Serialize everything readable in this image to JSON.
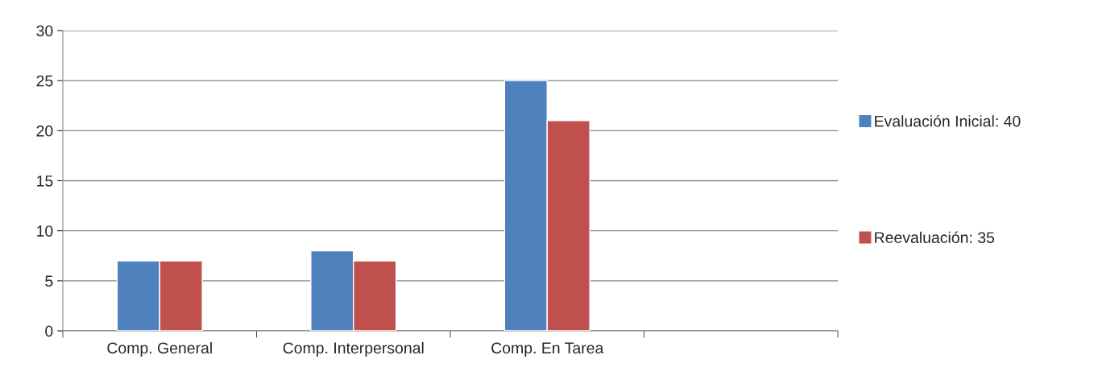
{
  "chart_data": {
    "type": "bar",
    "categories": [
      "Comp. General",
      "Comp. Interpersonal",
      "Comp. En Tarea",
      null
    ],
    "series": [
      {
        "name": "Evaluación Inicial: 40",
        "color": "#4f81bd",
        "values": [
          7,
          8,
          25,
          null
        ]
      },
      {
        "name": "Reevaluación: 35",
        "color": "#c0504d",
        "values": [
          7,
          7,
          21,
          null
        ]
      }
    ],
    "ylim": [
      0,
      30
    ],
    "yticks": [
      0,
      5,
      10,
      15,
      20,
      25,
      30
    ],
    "grid": "y",
    "legend": "right"
  }
}
